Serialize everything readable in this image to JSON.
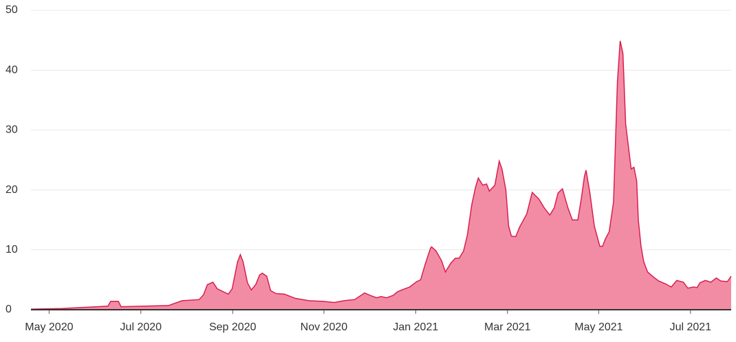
{
  "chart_data": {
    "type": "area",
    "x": [
      2020.3,
      2020.356,
      2020.44,
      2020.445,
      2020.459,
      2020.464,
      2020.55,
      2020.575,
      2020.606,
      2020.614,
      2020.621,
      2020.631,
      2020.639,
      2020.659,
      2020.666,
      2020.676,
      2020.681,
      2020.686,
      2020.694,
      2020.701,
      2020.709,
      2020.716,
      2020.721,
      2020.729,
      2020.736,
      2020.746,
      2020.761,
      2020.781,
      2020.806,
      2020.831,
      2020.852,
      2020.869,
      2020.889,
      2020.907,
      2020.917,
      2020.929,
      2020.937,
      2020.947,
      2020.959,
      2020.967,
      2020.977,
      2020.989,
      2021.002,
      2021.009,
      2021.017,
      2021.027,
      2021.029,
      2021.037,
      2021.047,
      2021.054,
      2021.064,
      2021.072,
      2021.079,
      2021.087,
      2021.094,
      2021.102,
      2021.109,
      2021.114,
      2021.122,
      2021.129,
      2021.134,
      2021.144,
      2021.152,
      2021.157,
      2021.164,
      2021.169,
      2021.174,
      2021.182,
      2021.189,
      2021.202,
      2021.212,
      2021.224,
      2021.234,
      2021.244,
      2021.252,
      2021.259,
      2021.267,
      2021.277,
      2021.285,
      2021.295,
      2021.302,
      2021.307,
      2021.31,
      2021.317,
      2021.325,
      2021.335,
      2021.34,
      2021.345,
      2021.352,
      2021.36,
      2021.367,
      2021.372,
      2021.377,
      2021.382,
      2021.392,
      2021.397,
      2021.402,
      2021.405,
      2021.41,
      2021.415,
      2021.422,
      2021.432,
      2021.442,
      2021.455,
      2021.465,
      2021.475,
      2021.487,
      2021.495,
      2021.505,
      2021.512,
      2021.517,
      2021.527,
      2021.537,
      2021.547,
      2021.555,
      2021.567,
      2021.574
    ],
    "values": [
      0.1,
      0.2,
      0.6,
      1.4,
      1.4,
      0.5,
      0.7,
      1.5,
      1.7,
      2.5,
      4.2,
      4.6,
      3.5,
      2.6,
      3.5,
      8.0,
      9.2,
      8.0,
      4.5,
      3.3,
      4.2,
      5.8,
      6.1,
      5.6,
      3.2,
      2.7,
      2.6,
      1.9,
      1.5,
      1.4,
      1.2,
      1.5,
      1.7,
      2.8,
      2.4,
      2.0,
      2.2,
      2.0,
      2.4,
      3.0,
      3.4,
      3.8,
      4.7,
      5.0,
      7.5,
      10.3,
      10.5,
      9.8,
      8.2,
      6.3,
      7.8,
      8.6,
      8.6,
      9.8,
      12.5,
      17.5,
      20.5,
      22.0,
      20.8,
      21.0,
      19.8,
      20.8,
      24.8,
      23.5,
      20.0,
      14.0,
      12.3,
      12.2,
      13.8,
      16.0,
      19.6,
      18.5,
      17.0,
      15.8,
      17.0,
      19.5,
      20.2,
      17.0,
      15.0,
      15.0,
      19.0,
      22.3,
      23.3,
      19.5,
      14.0,
      10.6,
      10.6,
      11.8,
      13.0,
      18.0,
      38.0,
      44.9,
      42.8,
      31.0,
      23.5,
      23.8,
      21.5,
      15.0,
      10.5,
      8.0,
      6.3,
      5.5,
      4.8,
      4.3,
      3.8,
      4.9,
      4.6,
      3.6,
      3.8,
      3.7,
      4.5,
      4.9,
      4.6,
      5.3,
      4.8,
      4.7,
      5.6
    ],
    "color": "#f28ca4",
    "line_color": "#d81e4e",
    "xlim": [
      2020.3,
      2021.574
    ],
    "xticks": [
      {
        "value": 2020.333,
        "label": "May 2020"
      },
      {
        "value": 2020.5,
        "label": "Jul 2020"
      },
      {
        "value": 2020.667,
        "label": "Sep 2020"
      },
      {
        "value": 2020.833,
        "label": "Nov 2020"
      },
      {
        "value": 2021.0,
        "label": "Jan 2021"
      },
      {
        "value": 2021.167,
        "label": "Mar 2021"
      },
      {
        "value": 2021.333,
        "label": "May 2021"
      },
      {
        "value": 2021.5,
        "label": "Jul 2021"
      }
    ],
    "ylim": [
      0,
      50
    ],
    "yticks": [
      0,
      10,
      20,
      30,
      40,
      50
    ],
    "grid": true
  }
}
